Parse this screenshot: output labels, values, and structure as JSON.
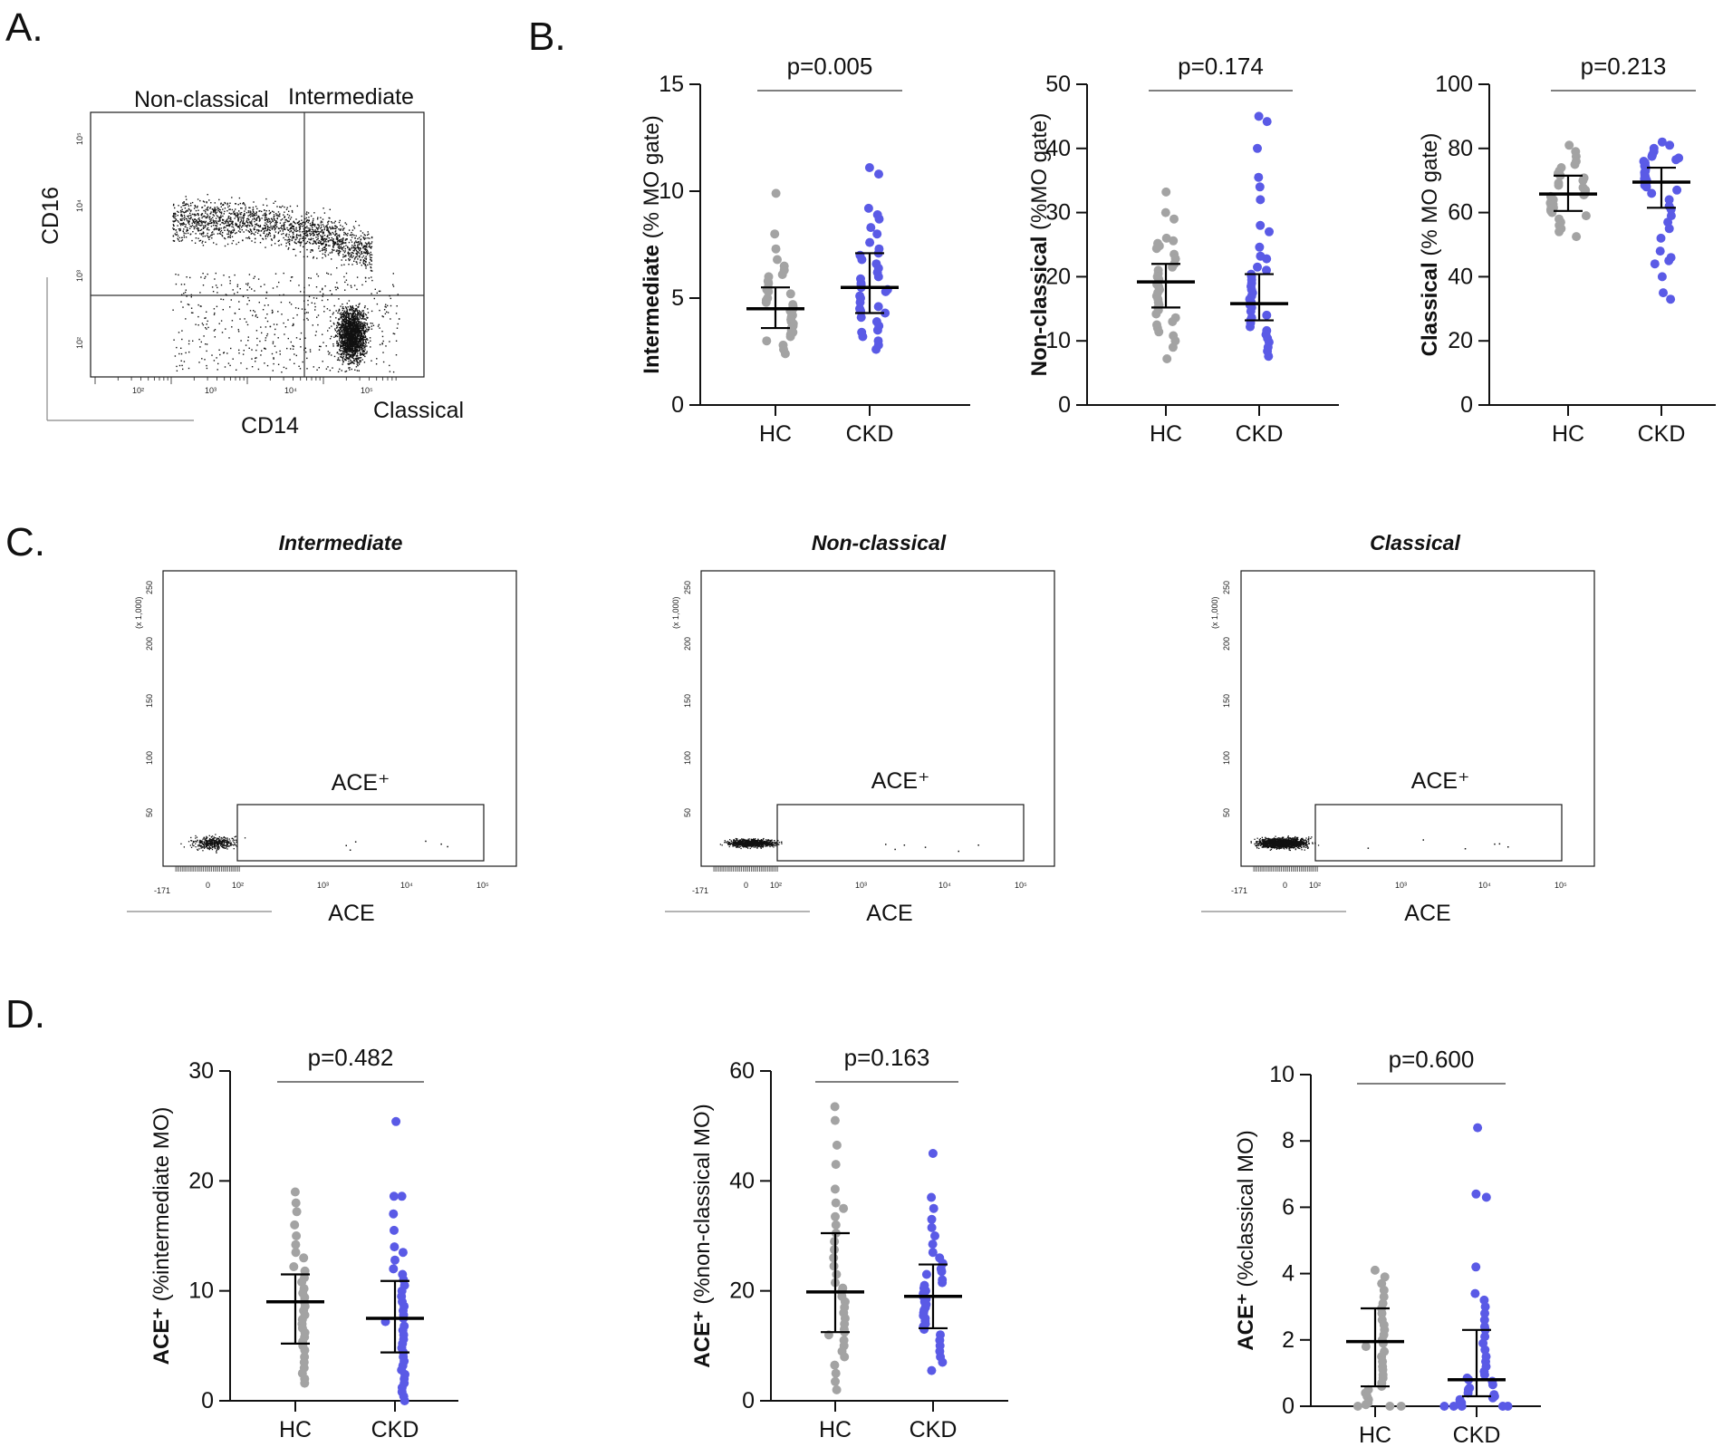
{
  "colors": {
    "hc": "#a3a3a3",
    "ckd": "#5a5ae6",
    "axis": "#111111"
  },
  "panel_labels": {
    "a": "A.",
    "b": "B.",
    "c": "C.",
    "d": "D."
  },
  "panel_a": {
    "quadrant_labels": {
      "nonclassical": "Non-classical",
      "intermediate": "Intermediate",
      "classical": "Classical"
    },
    "x_axis_label": "CD14",
    "y_axis_label": "CD16",
    "x_ticks": [
      "10²",
      "10³",
      "10⁴",
      "10⁵"
    ],
    "y_ticks": [
      "10²",
      "10³",
      "10⁴",
      "10⁵"
    ]
  },
  "panel_c": {
    "plots": [
      {
        "title": "Intermediate",
        "gate_label": "ACE⁺"
      },
      {
        "title": "Non-classical",
        "gate_label": "ACE⁺"
      },
      {
        "title": "Classical",
        "gate_label": "ACE⁺"
      }
    ],
    "y_unit": "(x 1,000)",
    "y_ticks": [
      "250",
      "200",
      "150",
      "100",
      "50"
    ],
    "x_ticks": [
      "-171",
      "0",
      "10²",
      "10³",
      "10⁴",
      "10⁵"
    ],
    "x_axis_label": "ACE"
  },
  "chart_data": [
    {
      "type": "scatter",
      "id": "b1",
      "title": "p=0.005",
      "ylabel_bold": "Intermediate",
      "ylabel_rest": " (% MO gate)",
      "categories": [
        "HC",
        "CKD"
      ],
      "ylim": [
        0,
        15
      ],
      "yticks": [
        0,
        5,
        10,
        15
      ],
      "series": [
        {
          "name": "HC",
          "median": 4.5,
          "q1": 3.6,
          "q3": 5.5,
          "values": [
            9.9,
            8.0,
            7.3,
            6.8,
            6.5,
            6.3,
            6.1,
            6.0,
            5.8,
            5.7,
            5.5,
            5.4,
            5.3,
            5.2,
            5.0,
            4.9,
            4.8,
            4.7,
            4.6,
            4.5,
            4.4,
            4.3,
            4.2,
            4.1,
            4.0,
            3.9,
            3.8,
            3.7,
            3.6,
            3.5,
            3.4,
            3.3,
            3.2,
            3.0,
            2.8,
            2.6,
            2.4
          ]
        },
        {
          "name": "CKD",
          "median": 5.5,
          "q1": 4.3,
          "q3": 7.1,
          "values": [
            11.1,
            10.8,
            9.2,
            8.9,
            8.7,
            8.3,
            8.0,
            7.6,
            7.3,
            7.1,
            7.0,
            6.8,
            6.6,
            6.4,
            6.2,
            6.0,
            5.9,
            5.7,
            5.6,
            5.5,
            5.4,
            5.3,
            5.1,
            5.0,
            4.8,
            4.6,
            4.5,
            4.4,
            4.3,
            4.1,
            3.9,
            3.7,
            3.5,
            3.4,
            3.2,
            3.0,
            2.8,
            2.6
          ]
        }
      ]
    },
    {
      "type": "scatter",
      "id": "b2",
      "title": "p=0.174",
      "ylabel_bold": "Non-classical",
      "ylabel_rest": " (%MO gate)",
      "categories": [
        "HC",
        "CKD"
      ],
      "ylim": [
        0,
        50
      ],
      "yticks": [
        0,
        10,
        20,
        30,
        40,
        50
      ],
      "series": [
        {
          "name": "HC",
          "median": 19.2,
          "q1": 15.2,
          "q3": 22.0,
          "values": [
            33.2,
            30.0,
            29.0,
            26.0,
            25.6,
            25.2,
            24.8,
            24.4,
            23.5,
            22.8,
            22.0,
            21.5,
            21.0,
            20.5,
            20.0,
            19.6,
            19.2,
            18.8,
            18.4,
            18.0,
            17.5,
            17.0,
            16.5,
            16.0,
            15.6,
            15.2,
            14.8,
            14.2,
            13.6,
            13.0,
            12.5,
            12.0,
            11.4,
            10.8,
            10.0,
            9.0,
            7.2
          ]
        },
        {
          "name": "CKD",
          "median": 15.8,
          "q1": 13.2,
          "q3": 20.4,
          "values": [
            45.0,
            44.2,
            40.0,
            35.5,
            34.0,
            32.0,
            28.0,
            27.0,
            24.6,
            23.2,
            22.8,
            21.5,
            21.0,
            20.4,
            20.0,
            19.5,
            19.0,
            18.5,
            18.0,
            17.5,
            17.0,
            16.5,
            16.0,
            15.6,
            15.2,
            14.6,
            14.0,
            13.6,
            13.2,
            12.8,
            12.2,
            11.6,
            11.0,
            10.4,
            9.8,
            9.0,
            8.4,
            7.6
          ]
        }
      ]
    },
    {
      "type": "scatter",
      "id": "b3",
      "title": "p=0.213",
      "ylabel_bold": "Classical",
      "ylabel_rest": " (% MO gate)",
      "categories": [
        "HC",
        "CKD"
      ],
      "ylim": [
        0,
        100
      ],
      "yticks": [
        0,
        20,
        40,
        60,
        80,
        100
      ],
      "series": [
        {
          "name": "HC",
          "median": 65.8,
          "q1": 60.5,
          "q3": 71.5,
          "values": [
            81.0,
            79.0,
            77.5,
            76.0,
            75.0,
            74.0,
            73.0,
            72.2,
            71.5,
            70.8,
            70.0,
            69.2,
            68.5,
            67.8,
            67.0,
            66.5,
            66.0,
            65.5,
            65.0,
            64.5,
            64.0,
            63.5,
            63.0,
            62.5,
            62.0,
            61.5,
            61.0,
            60.5,
            60.0,
            59.0,
            58.0,
            57.0,
            56.0,
            55.0,
            54.0,
            52.5
          ]
        },
        {
          "name": "CKD",
          "median": 69.5,
          "q1": 61.5,
          "q3": 74.0,
          "values": [
            82.0,
            81.0,
            80.0,
            79.0,
            78.0,
            77.5,
            77.0,
            76.5,
            76.0,
            75.5,
            75.0,
            74.5,
            74.0,
            73.5,
            73.0,
            72.5,
            72.0,
            71.5,
            71.0,
            70.5,
            70.0,
            69.5,
            69.0,
            68.5,
            68.0,
            67.0,
            66.0,
            64.0,
            62.0,
            61.0,
            59.0,
            57.0,
            55.0,
            52.0,
            48.0,
            46.0,
            45.0,
            44.0,
            40.0,
            35.0,
            33.0
          ]
        }
      ]
    },
    {
      "type": "scatter",
      "id": "d1",
      "title": "p=0.482",
      "ylabel_bold": "ACE⁺",
      "ylabel_rest": " (%intermediate MO)",
      "categories": [
        "HC",
        "CKD"
      ],
      "ylim": [
        0,
        30
      ],
      "yticks": [
        0,
        10,
        20,
        30
      ],
      "series": [
        {
          "name": "HC",
          "median": 9.0,
          "q1": 5.2,
          "q3": 11.5,
          "values": [
            19.0,
            18.0,
            17.2,
            16.0,
            15.0,
            14.2,
            13.5,
            13.0,
            12.2,
            11.8,
            11.2,
            10.8,
            10.2,
            9.8,
            9.4,
            9.0,
            8.6,
            8.2,
            7.8,
            7.4,
            7.0,
            6.6,
            6.2,
            5.8,
            5.4,
            5.0,
            4.6,
            4.0,
            3.5,
            3.0,
            2.5,
            2.0,
            1.6
          ]
        },
        {
          "name": "CKD",
          "median": 7.5,
          "q1": 4.4,
          "q3": 10.9,
          "values": [
            25.4,
            18.6,
            18.6,
            17.0,
            15.5,
            14.0,
            13.5,
            12.8,
            12.0,
            11.5,
            11.0,
            10.5,
            10.0,
            9.5,
            9.0,
            8.6,
            8.2,
            7.8,
            7.5,
            7.2,
            6.8,
            6.4,
            6.0,
            5.6,
            5.2,
            4.8,
            4.4,
            4.0,
            3.6,
            3.2,
            2.8,
            2.4,
            2.0,
            1.6,
            1.2,
            0.8,
            0.4,
            0.0
          ]
        }
      ]
    },
    {
      "type": "scatter",
      "id": "d2",
      "title": "p=0.163",
      "ylabel_bold": "ACE⁺",
      "ylabel_rest": " (%non-classical MO)",
      "categories": [
        "HC",
        "CKD"
      ],
      "ylim": [
        0,
        60
      ],
      "yticks": [
        0,
        20,
        40,
        60
      ],
      "series": [
        {
          "name": "HC",
          "median": 19.8,
          "q1": 12.5,
          "q3": 30.5,
          "values": [
            53.5,
            51.0,
            46.5,
            43.0,
            38.5,
            36.0,
            35.0,
            33.5,
            32.0,
            30.5,
            29.0,
            27.5,
            26.0,
            24.5,
            23.0,
            21.5,
            20.5,
            19.8,
            19.0,
            18.0,
            17.0,
            16.0,
            15.0,
            14.0,
            13.0,
            12.5,
            12.0,
            11.0,
            10.0,
            9.0,
            8.0,
            6.5,
            5.0,
            3.5,
            2.0
          ]
        },
        {
          "name": "CKD",
          "median": 19.0,
          "q1": 13.2,
          "q3": 24.8,
          "values": [
            45.0,
            37.0,
            35.0,
            33.0,
            31.5,
            30.0,
            28.5,
            27.0,
            26.0,
            25.0,
            24.0,
            23.5,
            23.0,
            22.0,
            21.5,
            21.0,
            20.5,
            20.0,
            19.5,
            19.0,
            18.5,
            18.0,
            17.5,
            17.0,
            16.5,
            16.0,
            15.5,
            15.0,
            14.5,
            14.0,
            13.5,
            13.0,
            12.0,
            11.0,
            10.0,
            9.0,
            8.0,
            7.0,
            5.5
          ]
        }
      ]
    },
    {
      "type": "scatter",
      "id": "d3",
      "title": "p=0.600",
      "ylabel_bold": "ACE⁺",
      "ylabel_rest": " (%classical MO)",
      "categories": [
        "HC",
        "CKD"
      ],
      "ylim": [
        0,
        10
      ],
      "yticks": [
        0,
        2,
        4,
        6,
        8,
        10
      ],
      "series": [
        {
          "name": "HC",
          "median": 1.95,
          "q1": 0.6,
          "q3": 2.95,
          "values": [
            4.1,
            3.9,
            3.7,
            3.5,
            3.3,
            3.1,
            2.95,
            2.8,
            2.6,
            2.45,
            2.3,
            2.15,
            2.0,
            1.9,
            1.8,
            1.65,
            1.5,
            1.35,
            1.2,
            1.1,
            0.95,
            0.85,
            0.7,
            0.6,
            0.5,
            0.4,
            0.3,
            0.2,
            0.1,
            0.05,
            0.0,
            0.0,
            0.0
          ]
        },
        {
          "name": "CKD",
          "median": 0.8,
          "q1": 0.3,
          "q3": 2.3,
          "values": [
            8.4,
            6.4,
            6.3,
            4.2,
            3.4,
            3.2,
            3.0,
            2.8,
            2.6,
            2.4,
            2.3,
            2.1,
            1.9,
            1.7,
            1.5,
            1.35,
            1.2,
            1.05,
            0.95,
            0.85,
            0.8,
            0.75,
            0.65,
            0.55,
            0.5,
            0.4,
            0.35,
            0.3,
            0.25,
            0.2,
            0.15,
            0.1,
            0.05,
            0.0,
            0.0,
            0.0,
            0.0,
            0.0
          ]
        }
      ]
    }
  ]
}
